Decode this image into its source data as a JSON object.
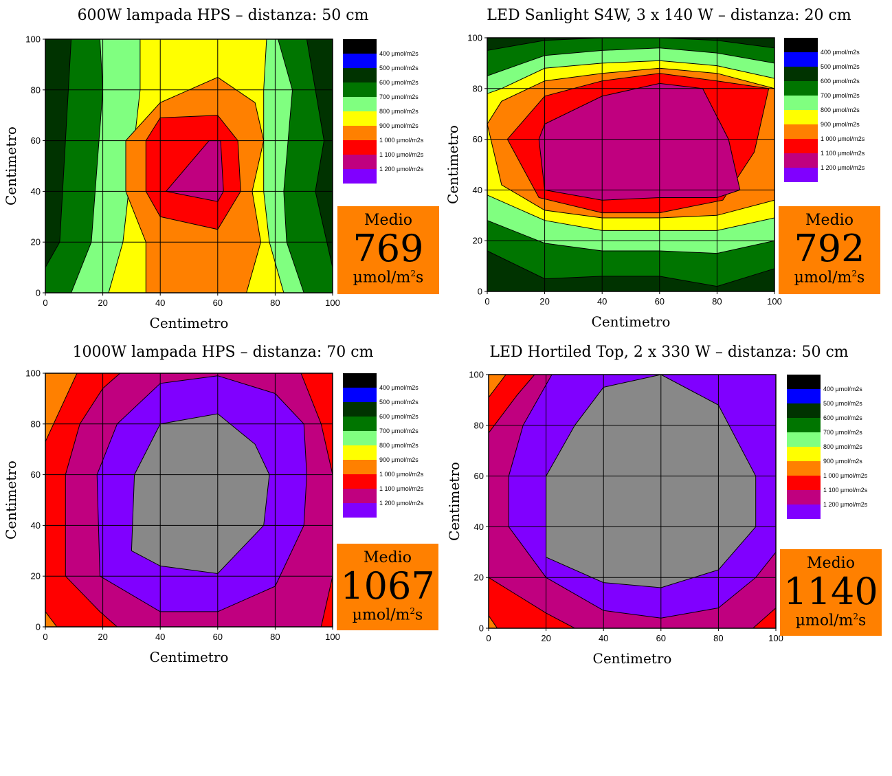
{
  "legend_colors": {
    "400": "#000000",
    "500": "#0000ff",
    "600": "#003300",
    "700": "#007500",
    "800": "#80ff80",
    "900": "#ffff00",
    "1000": "#ff8000",
    "1100": "#ff0000",
    "1200": "#c0007f",
    "1300": "#8000ff"
  },
  "legend_entries": [
    "400 µmol/m2s",
    "500 µmol/m2s",
    "600 µmol/m2s",
    "700 µmol/m2s",
    "800 µmol/m2s",
    "900 µmol/m2s",
    "1 000 µmol/m2s",
    "1 100 µmol/m2s",
    "1 200 µmol/m2s"
  ],
  "medio_label": "Medio",
  "unit_prefix": "µmol/m",
  "unit_sup": "2",
  "unit_suffix": "s",
  "chart_data": [
    {
      "type": "heatmap",
      "title": "600W lampada HPS – distanza: 50 cm",
      "xlabel": "Centimetro",
      "ylabel": "Centimetro",
      "xlim": [
        0,
        100
      ],
      "ylim": [
        0,
        100
      ],
      "xticks": [
        0,
        20,
        40,
        60,
        80,
        100
      ],
      "yticks": [
        0,
        20,
        40,
        60,
        80,
        100
      ],
      "grid": true,
      "legend_placement": "right",
      "medio": "769",
      "regions": [
        {
          "level": "600",
          "points": [
            [
              0,
              0
            ],
            [
              100,
              0
            ],
            [
              100,
              100
            ],
            [
              0,
              100
            ]
          ]
        },
        {
          "level": "700",
          "points": [
            [
              0,
              10
            ],
            [
              5,
              20
            ],
            [
              9,
              100
            ],
            [
              91,
              100
            ],
            [
              97,
              60
            ],
            [
              94,
              40
            ],
            [
              100,
              10
            ],
            [
              100,
              0
            ],
            [
              0,
              0
            ]
          ]
        },
        {
          "level": "800",
          "points": [
            [
              9,
              0
            ],
            [
              16,
              20
            ],
            [
              20,
              80
            ],
            [
              19,
              100
            ],
            [
              81,
              100
            ],
            [
              86,
              80
            ],
            [
              83,
              40
            ],
            [
              84,
              20
            ],
            [
              90,
              0
            ]
          ]
        },
        {
          "level": "900",
          "points": [
            [
              22,
              0
            ],
            [
              27,
              20
            ],
            [
              33,
              80
            ],
            [
              33,
              100
            ],
            [
              77,
              100
            ],
            [
              76,
              80
            ],
            [
              76,
              40
            ],
            [
              78,
              20
            ],
            [
              83,
              0
            ]
          ]
        },
        {
          "level": "1000",
          "points": [
            [
              35,
              0
            ],
            [
              35,
              20
            ],
            [
              28,
              40
            ],
            [
              28,
              60
            ],
            [
              40,
              75
            ],
            [
              60,
              85
            ],
            [
              73,
              75
            ],
            [
              76,
              60
            ],
            [
              72,
              40
            ],
            [
              75,
              20
            ],
            [
              70,
              0
            ]
          ]
        },
        {
          "level": "1100",
          "points": [
            [
              40,
              30
            ],
            [
              60,
              25
            ],
            [
              68,
              40
            ],
            [
              67,
              60
            ],
            [
              60,
              70
            ],
            [
              40,
              69
            ],
            [
              35,
              60
            ],
            [
              35,
              40
            ]
          ]
        },
        {
          "level": "1200",
          "points": [
            [
              42,
              40
            ],
            [
              60,
              36
            ],
            [
              62,
              40
            ],
            [
              61,
              60
            ],
            [
              57,
              60
            ]
          ]
        }
      ]
    },
    {
      "type": "heatmap",
      "title": "LED Sanlight S4W, 3 x 140 W – distanza: 20 cm",
      "xlabel": "Centimetro",
      "ylabel": "Centimetro",
      "xlim": [
        0,
        100
      ],
      "ylim": [
        0,
        100
      ],
      "xticks": [
        0,
        20,
        40,
        60,
        80,
        100
      ],
      "yticks": [
        0,
        20,
        40,
        60,
        80,
        100
      ],
      "grid": true,
      "legend_placement": "right",
      "medio": "792",
      "regions": [
        {
          "level": "600",
          "points": [
            [
              0,
              0
            ],
            [
              100,
              0
            ],
            [
              100,
              100
            ],
            [
              0,
              100
            ]
          ]
        },
        {
          "level": "700",
          "points": [
            [
              0,
              16
            ],
            [
              20,
              5
            ],
            [
              40,
              6
            ],
            [
              60,
              6
            ],
            [
              80,
              2
            ],
            [
              100,
              9
            ],
            [
              100,
              96
            ],
            [
              80,
              99
            ],
            [
              60,
              100
            ],
            [
              40,
              100
            ],
            [
              20,
              99
            ],
            [
              0,
              95
            ]
          ]
        },
        {
          "level": "800",
          "points": [
            [
              0,
              28
            ],
            [
              20,
              19
            ],
            [
              40,
              16
            ],
            [
              60,
              16
            ],
            [
              80,
              15
            ],
            [
              100,
              20
            ],
            [
              100,
              90
            ],
            [
              80,
              94
            ],
            [
              60,
              96
            ],
            [
              40,
              95
            ],
            [
              20,
              93
            ],
            [
              0,
              85
            ]
          ]
        },
        {
          "level": "900",
          "points": [
            [
              0,
              38
            ],
            [
              20,
              28
            ],
            [
              40,
              24
            ],
            [
              60,
              24
            ],
            [
              80,
              24
            ],
            [
              100,
              29
            ],
            [
              100,
              84
            ],
            [
              80,
              89
            ],
            [
              60,
              91
            ],
            [
              40,
              90
            ],
            [
              20,
              88
            ],
            [
              5,
              80
            ],
            [
              0,
              78
            ]
          ]
        },
        {
          "level": "1000",
          "points": [
            [
              0,
              66
            ],
            [
              5,
              75
            ],
            [
              20,
              83
            ],
            [
              40,
              86
            ],
            [
              60,
              88
            ],
            [
              80,
              86
            ],
            [
              100,
              80
            ],
            [
              100,
              36
            ],
            [
              80,
              30
            ],
            [
              60,
              29
            ],
            [
              40,
              29
            ],
            [
              20,
              32
            ],
            [
              5,
              42
            ]
          ]
        },
        {
          "level": "1100",
          "points": [
            [
              7,
              60
            ],
            [
              20,
              77
            ],
            [
              40,
              83
            ],
            [
              60,
              86
            ],
            [
              80,
              83
            ],
            [
              98,
              80
            ],
            [
              93,
              55
            ],
            [
              82,
              36
            ],
            [
              60,
              31
            ],
            [
              40,
              31
            ],
            [
              18,
              37
            ]
          ]
        },
        {
          "level": "1200",
          "points": [
            [
              20,
              40
            ],
            [
              40,
              36
            ],
            [
              60,
              37
            ],
            [
              80,
              37
            ],
            [
              88,
              40
            ],
            [
              84,
              60
            ],
            [
              75,
              80
            ],
            [
              60,
              82
            ],
            [
              40,
              77
            ],
            [
              20,
              66
            ],
            [
              18,
              60
            ]
          ]
        }
      ]
    },
    {
      "type": "heatmap",
      "title": "1000W lampada HPS – distanza: 70 cm",
      "xlabel": "Centimetro",
      "ylabel": "Centimetro",
      "xlim": [
        0,
        100
      ],
      "ylim": [
        0,
        100
      ],
      "xticks": [
        0,
        20,
        40,
        60,
        80,
        100
      ],
      "yticks": [
        0,
        20,
        40,
        60,
        80,
        100
      ],
      "grid": true,
      "legend_placement": "right",
      "medio": "1067",
      "regions": [
        {
          "level": "1000",
          "points": [
            [
              0,
              0
            ],
            [
              100,
              0
            ],
            [
              100,
              100
            ],
            [
              0,
              100
            ]
          ]
        },
        {
          "level": "1100",
          "points": [
            [
              4,
              0
            ],
            [
              0,
              6
            ],
            [
              0,
              73
            ],
            [
              11,
              100
            ],
            [
              100,
              100
            ],
            [
              100,
              0
            ]
          ]
        },
        {
          "level": "1200",
          "points": [
            [
              7,
              20
            ],
            [
              7,
              60
            ],
            [
              12,
              80
            ],
            [
              20,
              94
            ],
            [
              26,
              100
            ],
            [
              89,
              100
            ],
            [
              96,
              80
            ],
            [
              100,
              60
            ],
            [
              100,
              20
            ],
            [
              96,
              0
            ],
            [
              25,
              0
            ],
            [
              19,
              6
            ]
          ]
        },
        {
          "level": "1300",
          "points": [
            [
              19,
              20
            ],
            [
              18,
              60
            ],
            [
              25,
              80
            ],
            [
              40,
              96
            ],
            [
              60,
              99
            ],
            [
              80,
              92
            ],
            [
              90,
              80
            ],
            [
              91,
              60
            ],
            [
              90,
              40
            ],
            [
              80,
              16
            ],
            [
              60,
              6
            ],
            [
              40,
              6
            ]
          ]
        },
        {
          "level": "1400",
          "points": [
            [
              30,
              30
            ],
            [
              31,
              60
            ],
            [
              40,
              80
            ],
            [
              60,
              84
            ],
            [
              73,
              72
            ],
            [
              78,
              60
            ],
            [
              76,
              40
            ],
            [
              60,
              21
            ],
            [
              40,
              24
            ]
          ]
        }
      ]
    },
    {
      "type": "heatmap",
      "title": "LED Hortiled Top, 2 x 330 W – distanza: 50 cm",
      "xlabel": "Centimetro",
      "ylabel": "Centimetro",
      "xlim": [
        0,
        100
      ],
      "ylim": [
        0,
        100
      ],
      "xticks": [
        0,
        20,
        40,
        60,
        80,
        100
      ],
      "yticks": [
        0,
        20,
        40,
        60,
        80,
        100
      ],
      "grid": true,
      "legend_placement": "right",
      "medio": "1140",
      "regions": [
        {
          "level": "1000",
          "points": [
            [
              0,
              0
            ],
            [
              100,
              0
            ],
            [
              100,
              100
            ],
            [
              0,
              100
            ]
          ]
        },
        {
          "level": "1100",
          "points": [
            [
              0,
              5
            ],
            [
              3,
              0
            ],
            [
              100,
              0
            ],
            [
              100,
              100
            ],
            [
              6,
              100
            ],
            [
              0,
              91
            ]
          ]
        },
        {
          "level": "1200",
          "points": [
            [
              0,
              20
            ],
            [
              10,
              13
            ],
            [
              20,
              6
            ],
            [
              30,
              0
            ],
            [
              92,
              0
            ],
            [
              100,
              8
            ],
            [
              100,
              100
            ],
            [
              16,
              100
            ],
            [
              10,
              92
            ],
            [
              0,
              77
            ]
          ]
        },
        {
          "level": "1300",
          "points": [
            [
              7,
              40
            ],
            [
              20,
              20
            ],
            [
              40,
              7
            ],
            [
              60,
              4
            ],
            [
              80,
              8
            ],
            [
              93,
              20
            ],
            [
              100,
              30
            ],
            [
              100,
              100
            ],
            [
              22,
              100
            ],
            [
              12,
              80
            ],
            [
              7,
              60
            ]
          ]
        },
        {
          "level": "1400",
          "points": [
            [
              20,
              40
            ],
            [
              20,
              60
            ],
            [
              30,
              80
            ],
            [
              40,
              95
            ],
            [
              60,
              100
            ],
            [
              80,
              88
            ],
            [
              93,
              60
            ],
            [
              93,
              40
            ],
            [
              80,
              23
            ],
            [
              60,
              16
            ],
            [
              40,
              18
            ],
            [
              20,
              28
            ]
          ]
        }
      ]
    }
  ]
}
